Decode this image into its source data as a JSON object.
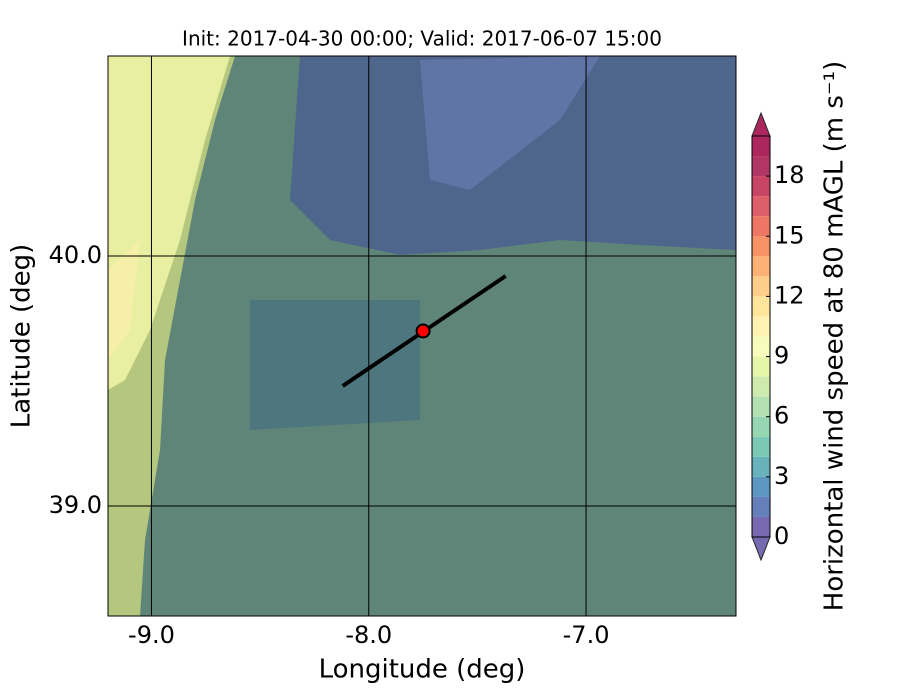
{
  "chart_data": {
    "type": "map",
    "title": "Init: 2017-04-30 00:00; Valid: 2017-06-07 15:00",
    "xlabel": "Longitude (deg)",
    "ylabel": "Latitude (deg)",
    "xlim": [
      -9.2,
      -6.31
    ],
    "ylim": [
      38.56,
      40.8
    ],
    "xticks": [
      {
        "value": -9,
        "label": "-9.0"
      },
      {
        "value": -8,
        "label": "-8.0"
      },
      {
        "value": -7,
        "label": "-7.0"
      }
    ],
    "yticks": [
      {
        "value": 39,
        "label": "39.0"
      },
      {
        "value": 40,
        "label": "40.0"
      }
    ],
    "grid": true,
    "transect": {
      "x": [
        -8.12,
        -7.37
      ],
      "y": [
        39.48,
        39.92
      ],
      "color": "#000000"
    },
    "marker": {
      "x": -7.75,
      "y": 39.7,
      "color": "#ff0000"
    },
    "colorbar": {
      "label": "Horizontal wind speed at 80 mAGL (m s⁻¹)",
      "levels": [
        0,
        1,
        2,
        3,
        4,
        5,
        6,
        7,
        8,
        9,
        10,
        11,
        12,
        13,
        14,
        15,
        16,
        17,
        18,
        19,
        20
      ],
      "colors": [
        "#5e4fa2",
        "#4a68ae",
        "#3f85b7",
        "#4ea4b0",
        "#63bea8",
        "#85cfa4",
        "#a6dca4",
        "#c6e89f",
        "#e2f39b",
        "#f6fbb1",
        "#fff0a6",
        "#fee08b",
        "#fdc574",
        "#fba45c",
        "#f67f4b",
        "#ea5f46",
        "#d7434f",
        "#be254a",
        "#a5134a",
        "#9e0142"
      ],
      "ticks": [
        0,
        3,
        6,
        9,
        12,
        15,
        18
      ]
    }
  }
}
